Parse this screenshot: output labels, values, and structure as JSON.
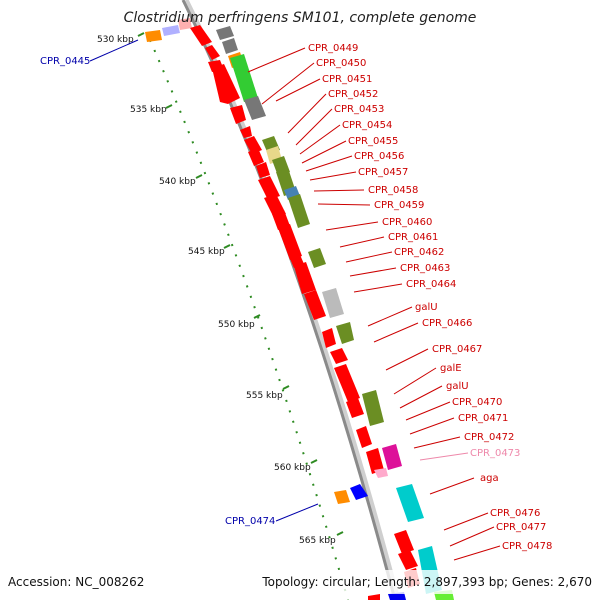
{
  "title": "Clostridium perfringens SM101, complete genome",
  "footer": {
    "accession": "Accession: NC_008262",
    "stats": "Topology: circular; Length: 2,897,393 bp; Genes: 2,670"
  },
  "colors": {
    "backbone": "#8a8a8a",
    "forward_gene": "#ff0000",
    "reverse_gene": "#ff0000",
    "tick": "#2e8b22",
    "label_red": "#cc0000",
    "label_blue": "#0000aa",
    "label_pink": "#ee88aa"
  },
  "ticks": [
    {
      "label": "530 kbp"
    },
    {
      "label": "535 kbp"
    },
    {
      "label": "540 kbp"
    },
    {
      "label": "545 kbp"
    },
    {
      "label": "550 kbp"
    },
    {
      "label": "555 kbp"
    },
    {
      "label": "560 kbp"
    },
    {
      "label": "565 kbp"
    }
  ],
  "gene_labels": [
    {
      "text": "CPR_0445",
      "color": "blue"
    },
    {
      "text": "CPR_0449",
      "color": "red"
    },
    {
      "text": "CPR_0450",
      "color": "red"
    },
    {
      "text": "CPR_0451",
      "color": "red"
    },
    {
      "text": "CPR_0452",
      "color": "red"
    },
    {
      "text": "CPR_0453",
      "color": "red"
    },
    {
      "text": "CPR_0454",
      "color": "red"
    },
    {
      "text": "CPR_0455",
      "color": "red"
    },
    {
      "text": "CPR_0456",
      "color": "red"
    },
    {
      "text": "CPR_0457",
      "color": "red"
    },
    {
      "text": "CPR_0458",
      "color": "red"
    },
    {
      "text": "CPR_0459",
      "color": "red"
    },
    {
      "text": "CPR_0460",
      "color": "red"
    },
    {
      "text": "CPR_0461",
      "color": "red"
    },
    {
      "text": "CPR_0462",
      "color": "red"
    },
    {
      "text": "CPR_0463",
      "color": "red"
    },
    {
      "text": "CPR_0464",
      "color": "red"
    },
    {
      "text": "galU",
      "color": "red"
    },
    {
      "text": "CPR_0466",
      "color": "red"
    },
    {
      "text": "CPR_0467",
      "color": "red"
    },
    {
      "text": "galE",
      "color": "red"
    },
    {
      "text": "galU",
      "color": "red"
    },
    {
      "text": "CPR_0470",
      "color": "red"
    },
    {
      "text": "CPR_0471",
      "color": "red"
    },
    {
      "text": "CPR_0472",
      "color": "red"
    },
    {
      "text": "CPR_0473",
      "color": "pink"
    },
    {
      "text": "aga",
      "color": "red"
    },
    {
      "text": "CPR_0474",
      "color": "blue"
    },
    {
      "text": "CPR_0476",
      "color": "red"
    },
    {
      "text": "CPR_0477",
      "color": "red"
    },
    {
      "text": "CPR_0478",
      "color": "red"
    }
  ]
}
